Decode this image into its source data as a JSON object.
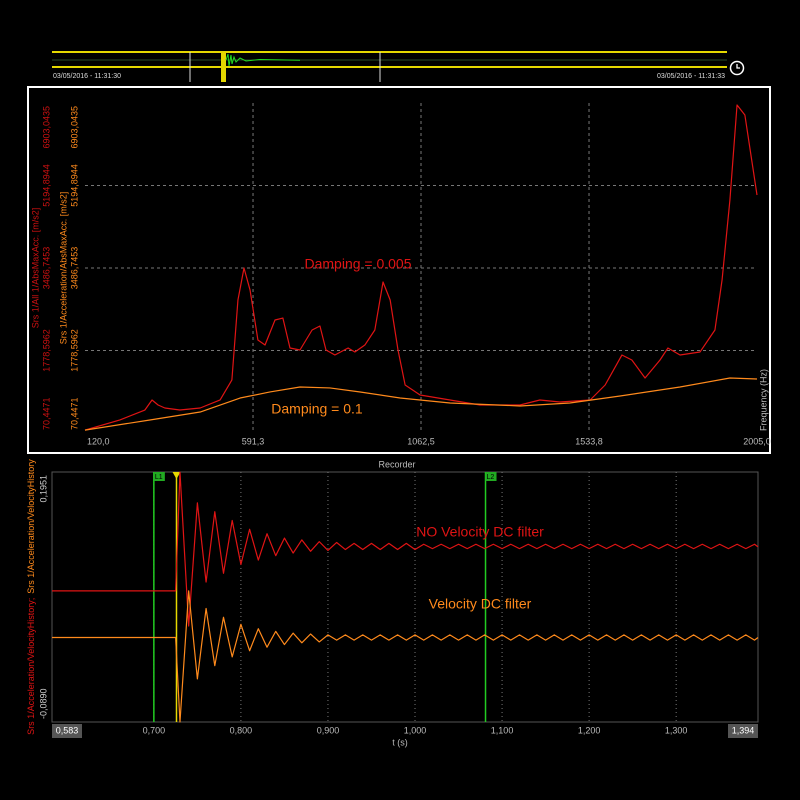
{
  "overview": {
    "start": "03/05/2016 - 11:31:30",
    "end": "03/05/2016 - 11:31:33"
  },
  "chart_data": [
    {
      "type": "line",
      "x_label": "Frequency (Hz)",
      "y_label": "Srs 1/All 1/AbsMaxAcc. [m/s2]",
      "y2_label": "Srs 1/Acceleration/AbsMaxAcc. [m/s2]",
      "xlim": [
        120,
        2005
      ],
      "xticks": [
        {
          "value": 120,
          "label": "120,0"
        },
        {
          "value": 591.3,
          "label": "591,3"
        },
        {
          "value": 1062.5,
          "label": "1062,5"
        },
        {
          "value": 1533.8,
          "label": "1533,8"
        },
        {
          "value": 2005,
          "label": "2005,0"
        }
      ],
      "ylim": [
        70.4471,
        6903.0435
      ],
      "yticks": [
        {
          "value": 70.4471,
          "label": "70,4471"
        },
        {
          "value": 1778.5962,
          "label": "1778,5962"
        },
        {
          "value": 3486.7453,
          "label": "3486,7453"
        },
        {
          "value": 5194.8944,
          "label": "5194,8944"
        },
        {
          "value": 6903.0435,
          "label": "6903,0435"
        }
      ],
      "y2lim": [
        70.4471,
        6903.0435
      ],
      "y2ticks": [
        {
          "value": 70.4471,
          "label": "70,4471"
        },
        {
          "value": 1778.5962,
          "label": "1778,5962"
        },
        {
          "value": 3486.7453,
          "label": "3486,7453"
        },
        {
          "value": 5194.8944,
          "label": "5194,8944"
        },
        {
          "value": 6903.0435,
          "label": "6903,0435"
        }
      ],
      "grid": true,
      "annotations": [
        "Damping = 0.005",
        "Damping = 0.1"
      ],
      "series": [
        {
          "color": "#e01414",
          "x": [
            120,
            218,
            288,
            308,
            325,
            344,
            386,
            443,
            499,
            532,
            549,
            566,
            583,
            605,
            625,
            653,
            675,
            695,
            723,
            757,
            779,
            796,
            821,
            858,
            877,
            905,
            933,
            956,
            976,
            998,
            1018,
            1060,
            1144,
            1228,
            1340,
            1396,
            1452,
            1537,
            1579,
            1626,
            1654,
            1691,
            1733,
            1755,
            1789,
            1845,
            1887,
            1907,
            1929,
            1949,
            1971,
            2005
          ],
          "values": [
            130,
            340,
            546,
            754,
            650,
            588,
            546,
            588,
            754,
            1168,
            2824,
            3487,
            3030,
            1996,
            1892,
            2410,
            2451,
            1830,
            1789,
            2203,
            2286,
            1789,
            1685,
            1830,
            1747,
            1892,
            2203,
            3197,
            2824,
            1789,
            1064,
            857,
            754,
            650,
            650,
            754,
            712,
            754,
            1064,
            1685,
            1582,
            1209,
            1582,
            1830,
            1685,
            1747,
            2203,
            3238,
            4894,
            6861,
            6654,
            4998
          ]
        },
        {
          "color": "#ff8a1c",
          "axis": "y2",
          "x": [
            120,
            302,
            443,
            555,
            639,
            723,
            807,
            892,
            1004,
            1144,
            1340,
            1480,
            1621,
            1789,
            1929,
            2005
          ],
          "values": [
            130,
            340,
            505,
            795,
            920,
            1023,
            1003,
            920,
            795,
            692,
            630,
            692,
            837,
            1023,
            1209,
            1189
          ]
        }
      ]
    },
    {
      "type": "line",
      "title": "Recorder",
      "x_label": "t (s)",
      "y_labels": [
        {
          "text": "Srs 1/Acceleration/VelocityHistory;",
          "color": "#e01414"
        },
        {
          "text": "Srs 1/Acceleration/VelocityHistory",
          "color": "#ff8a1c"
        }
      ],
      "xlim": [
        0.583,
        1.394
      ],
      "xticks": [
        {
          "value": 0.583,
          "label": "0,583"
        },
        {
          "value": 0.7,
          "label": "0,700"
        },
        {
          "value": 0.8,
          "label": "0,800"
        },
        {
          "value": 0.9,
          "label": "0,900"
        },
        {
          "value": 1.0,
          "label": "1,000"
        },
        {
          "value": 1.1,
          "label": "1,100"
        },
        {
          "value": 1.2,
          "label": "1,200"
        },
        {
          "value": 1.3,
          "label": "1,300"
        },
        {
          "value": 1.394,
          "label": "1,394"
        }
      ],
      "ylim": [
        -0.089,
        0.1951
      ],
      "yticks": [
        {
          "value": -0.089,
          "label": "-0,0890"
        },
        {
          "value": 0.1951,
          "label": "0,1951"
        }
      ],
      "grid": true,
      "cursors": [
        {
          "label": "L1",
          "x": 0.7
        },
        {
          "label": "L2",
          "x": 1.081
        }
      ],
      "trigger_x": 0.726,
      "annotations": [
        "NO Velocity DC filter",
        "Velocity DC filter"
      ],
      "x": [
        0.583,
        0.72,
        0.725,
        0.73,
        0.74,
        0.75,
        0.76,
        0.77,
        0.78,
        0.79,
        0.8,
        0.81,
        0.82,
        0.83,
        0.84,
        0.85,
        0.86,
        0.87,
        0.88,
        0.89,
        0.9,
        0.91,
        0.92,
        0.93,
        0.94,
        0.95,
        0.96,
        0.97,
        0.98,
        0.99,
        1.0,
        1.01,
        1.02,
        1.03,
        1.04,
        1.05,
        1.06,
        1.07,
        1.08,
        1.09,
        1.1,
        1.11,
        1.12,
        1.13,
        1.14,
        1.15,
        1.16,
        1.17,
        1.18,
        1.19,
        1.2,
        1.21,
        1.22,
        1.23,
        1.24,
        1.25,
        1.26,
        1.27,
        1.28,
        1.29,
        1.3,
        1.31,
        1.32,
        1.33,
        1.34,
        1.35,
        1.36,
        1.37,
        1.38,
        1.39,
        1.394
      ],
      "series": [
        {
          "color": "#e01414",
          "values": [
            0.06,
            0.06,
            0.06,
            0.195,
            0.02,
            0.16,
            0.07,
            0.15,
            0.08,
            0.14,
            0.09,
            0.13,
            0.095,
            0.125,
            0.1,
            0.12,
            0.103,
            0.118,
            0.105,
            0.116,
            0.106,
            0.115,
            0.107,
            0.114,
            0.107,
            0.114,
            0.107,
            0.114,
            0.107,
            0.114,
            0.107,
            0.113,
            0.108,
            0.113,
            0.108,
            0.113,
            0.108,
            0.113,
            0.108,
            0.113,
            0.108,
            0.113,
            0.108,
            0.113,
            0.108,
            0.113,
            0.108,
            0.113,
            0.108,
            0.113,
            0.108,
            0.113,
            0.108,
            0.113,
            0.108,
            0.113,
            0.108,
            0.113,
            0.108,
            0.113,
            0.108,
            0.113,
            0.108,
            0.113,
            0.108,
            0.113,
            0.108,
            0.113,
            0.108,
            0.113,
            0.11
          ]
        },
        {
          "color": "#ff8a1c",
          "values": [
            0.007,
            0.007,
            0.007,
            -0.089,
            0.06,
            -0.04,
            0.04,
            -0.025,
            0.03,
            -0.015,
            0.022,
            -0.008,
            0.017,
            -0.004,
            0.014,
            -0.001,
            0.012,
            0.001,
            0.011,
            0.002,
            0.01,
            0.004,
            0.01,
            0.004,
            0.01,
            0.004,
            0.01,
            0.004,
            0.01,
            0.004,
            0.01,
            0.004,
            0.01,
            0.004,
            0.01,
            0.004,
            0.01,
            0.004,
            0.01,
            0.004,
            0.01,
            0.004,
            0.01,
            0.004,
            0.01,
            0.004,
            0.01,
            0.004,
            0.01,
            0.004,
            0.01,
            0.004,
            0.01,
            0.004,
            0.01,
            0.004,
            0.01,
            0.004,
            0.01,
            0.004,
            0.01,
            0.004,
            0.01,
            0.004,
            0.01,
            0.004,
            0.01,
            0.004,
            0.01,
            0.004,
            0.007
          ]
        }
      ]
    }
  ]
}
